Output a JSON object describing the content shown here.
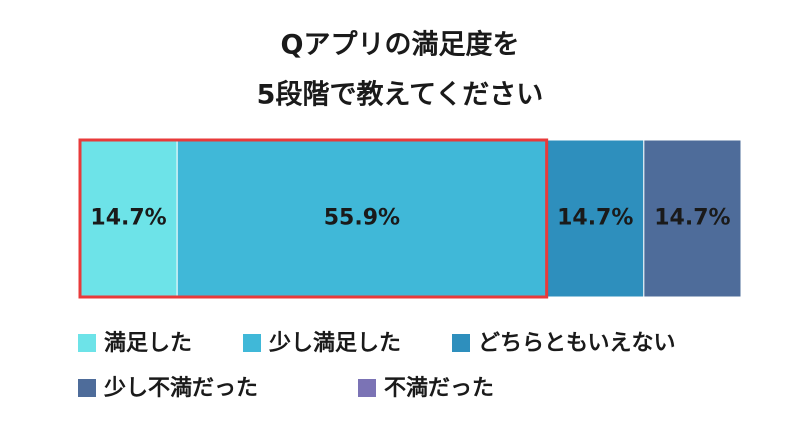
{
  "chart_data": {
    "type": "bar",
    "orientation": "horizontal",
    "stacked": true,
    "title": [
      "Qアプリの満足度を",
      "5段階で教えてください"
    ],
    "categories": [
      null
    ],
    "xlim": [
      0,
      100
    ],
    "series": [
      {
        "name": "満足した",
        "color": "#6de3e8",
        "values": [
          14.7
        ],
        "value_labels": [
          "14.7%"
        ]
      },
      {
        "name": "少し満足した",
        "color": "#40b8d8",
        "values": [
          55.9
        ],
        "value_labels": [
          "55.9%"
        ]
      },
      {
        "name": "どちらともいえない",
        "color": "#2e8fbd",
        "values": [
          14.7
        ],
        "value_labels": [
          "14.7%"
        ]
      },
      {
        "name": "少し不満だった",
        "color": "#4e6c9a",
        "values": [
          14.7
        ],
        "value_labels": [
          "14.7%"
        ]
      },
      {
        "name": "不満だった",
        "color": "#7b73b5",
        "values": [
          0
        ],
        "value_labels": [
          null
        ]
      }
    ],
    "highlight_color": "#e83a3a"
  }
}
